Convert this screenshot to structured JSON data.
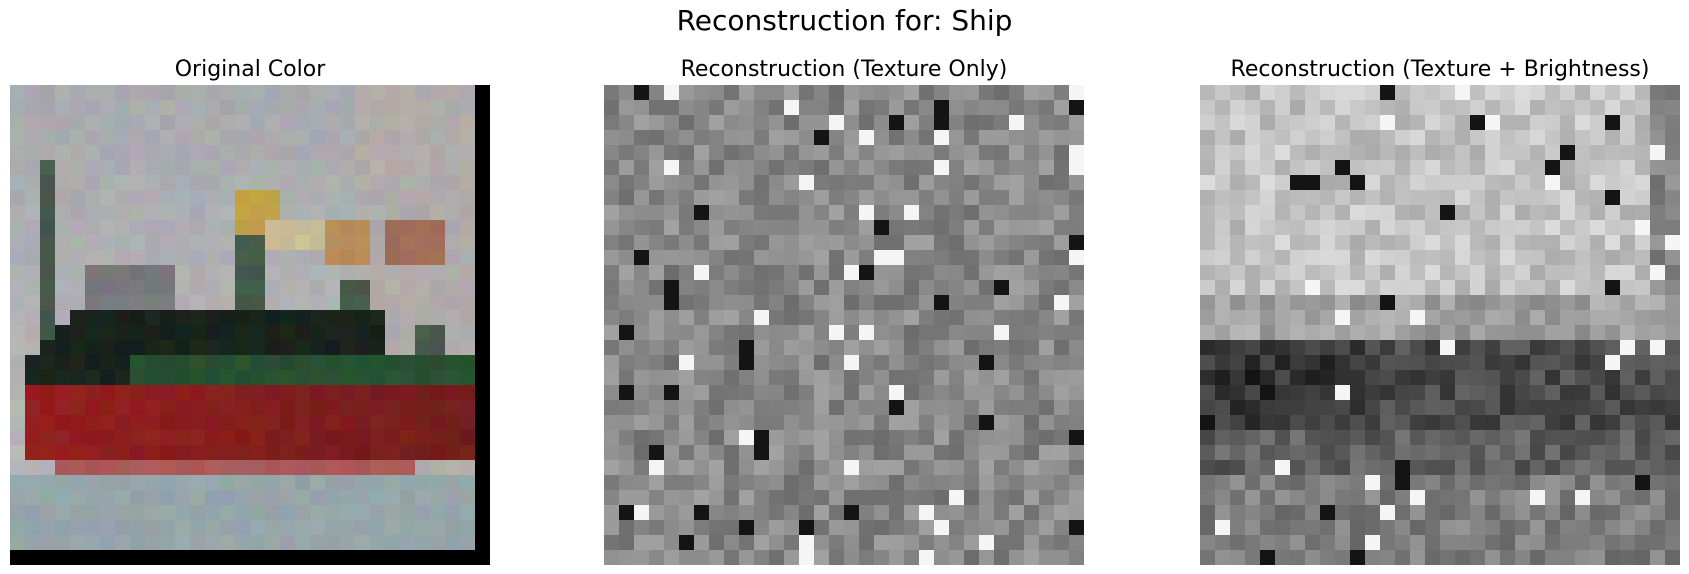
{
  "figure": {
    "suptitle": "Reconstruction for: Ship",
    "panels": [
      {
        "title": "Original Color",
        "kind": "color-image"
      },
      {
        "title": "Reconstruction (Texture Only)",
        "kind": "grayscale-noise"
      },
      {
        "title": "Reconstruction (Texture + Brightness)",
        "kind": "grayscale-shaded"
      }
    ]
  }
}
